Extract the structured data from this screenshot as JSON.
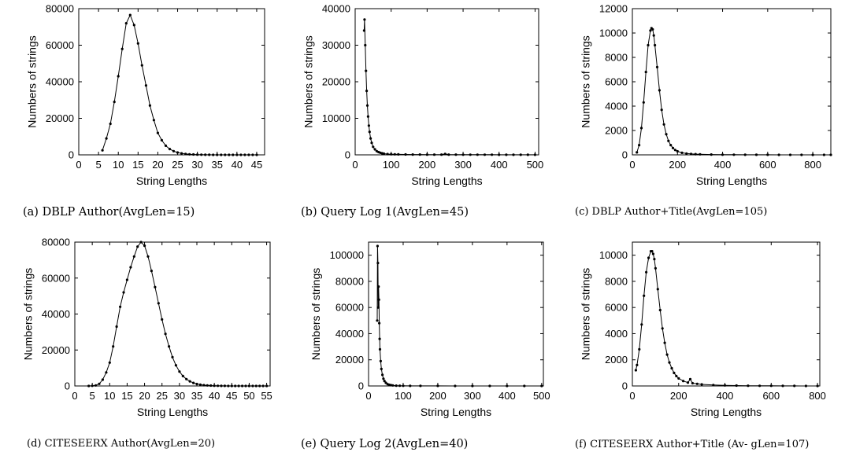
{
  "chart_data": [
    {
      "id": "a",
      "type": "line",
      "caption": "(a)  DBLP Author(AvgLen=15)",
      "xlabel": "String Lengths",
      "ylabel": "Numbers of strings",
      "xlim": [
        0,
        47
      ],
      "ylim": [
        0,
        80000
      ],
      "xticks": [
        0,
        5,
        10,
        15,
        20,
        25,
        30,
        35,
        40,
        45
      ],
      "yticks": [
        0,
        20000,
        40000,
        60000,
        80000
      ],
      "grid": false,
      "legend": "none",
      "series": [
        {
          "x": [
            6,
            7,
            8,
            9,
            10,
            11,
            12,
            13,
            14,
            15,
            16,
            17,
            18,
            19,
            20,
            21,
            22,
            23,
            24,
            25,
            26,
            27,
            28,
            29,
            30,
            31,
            32,
            33,
            34,
            35,
            36,
            37,
            38,
            39,
            40,
            41,
            42,
            43,
            44,
            45
          ],
          "y": [
            2500,
            9000,
            17000,
            29000,
            43000,
            58000,
            72000,
            76500,
            71000,
            61000,
            49000,
            38000,
            27000,
            19000,
            12000,
            8000,
            5000,
            3200,
            2000,
            1300,
            800,
            500,
            300,
            200,
            120,
            80,
            50,
            30,
            20,
            12,
            8,
            5,
            3,
            2,
            1,
            1,
            1,
            1,
            1,
            1
          ]
        }
      ]
    },
    {
      "id": "b",
      "type": "line",
      "caption": "(b)  Query Log 1(AvgLen=45)",
      "xlabel": "String Lengths",
      "ylabel": "Numbers of strings",
      "xlim": [
        0,
        510
      ],
      "ylim": [
        0,
        40000
      ],
      "xticks": [
        0,
        100,
        200,
        300,
        400,
        500
      ],
      "yticks": [
        0,
        10000,
        20000,
        30000,
        40000
      ],
      "grid": false,
      "legend": "none",
      "series": [
        {
          "x": [
            25,
            26,
            28,
            30,
            32,
            34,
            36,
            38,
            40,
            43,
            46,
            50,
            55,
            60,
            65,
            70,
            75,
            80,
            90,
            100,
            110,
            120,
            140,
            160,
            180,
            200,
            220,
            240,
            250,
            260,
            280,
            300,
            320,
            340,
            360,
            380,
            400,
            420,
            440,
            460,
            480,
            500
          ],
          "y": [
            34000,
            37000,
            30000,
            23000,
            17500,
            13500,
            10500,
            8000,
            6300,
            4500,
            3300,
            2200,
            1500,
            1000,
            750,
            560,
            420,
            320,
            220,
            170,
            140,
            120,
            100,
            90,
            80,
            75,
            70,
            65,
            260,
            60,
            55,
            50,
            45,
            40,
            38,
            35,
            32,
            30,
            28,
            25,
            22,
            20
          ]
        }
      ]
    },
    {
      "id": "c",
      "type": "line",
      "caption": "(c)  DBLP Author+Title(AvgLen=105)",
      "xlabel": "String Lengths",
      "ylabel": "Numbers of strings",
      "xlim": [
        0,
        880
      ],
      "ylim": [
        0,
        12000
      ],
      "xticks": [
        0,
        200,
        400,
        600,
        800
      ],
      "yticks": [
        0,
        2000,
        4000,
        6000,
        8000,
        10000,
        12000
      ],
      "grid": false,
      "legend": "none",
      "series": [
        {
          "x": [
            20,
            30,
            40,
            50,
            60,
            70,
            80,
            85,
            90,
            95,
            100,
            110,
            120,
            130,
            140,
            150,
            160,
            170,
            180,
            190,
            200,
            220,
            240,
            260,
            280,
            300,
            350,
            400,
            450,
            500,
            550,
            600,
            650,
            700,
            750,
            800,
            850,
            880
          ],
          "y": [
            200,
            800,
            2200,
            4300,
            6800,
            9000,
            10200,
            10400,
            10300,
            9800,
            9000,
            7200,
            5300,
            3700,
            2500,
            1700,
            1150,
            800,
            560,
            400,
            290,
            170,
            110,
            80,
            60,
            45,
            25,
            15,
            10,
            7,
            5,
            4,
            3,
            2,
            2,
            1,
            1,
            1
          ]
        }
      ]
    },
    {
      "id": "d",
      "type": "line",
      "caption": "(d)  CITESEERX Author(AvgLen=20)",
      "xlabel": "String Lengths",
      "ylabel": "Numbers of strings",
      "xlim": [
        0,
        56
      ],
      "ylim": [
        0,
        80000
      ],
      "xticks": [
        0,
        5,
        10,
        15,
        20,
        25,
        30,
        35,
        40,
        45,
        50,
        55
      ],
      "yticks": [
        0,
        20000,
        40000,
        60000,
        80000
      ],
      "grid": false,
      "legend": "none",
      "series": [
        {
          "x": [
            4,
            5,
            6,
            7,
            8,
            9,
            10,
            11,
            12,
            13,
            14,
            15,
            16,
            17,
            18,
            19,
            20,
            21,
            22,
            23,
            24,
            25,
            26,
            27,
            28,
            29,
            30,
            31,
            32,
            33,
            34,
            35,
            36,
            37,
            38,
            39,
            40,
            41,
            42,
            43,
            44,
            45,
            46,
            47,
            48,
            49,
            50,
            51,
            52,
            53,
            54,
            55
          ],
          "y": [
            0,
            100,
            300,
            1200,
            3500,
            7500,
            13000,
            22000,
            33000,
            44000,
            52000,
            59000,
            66000,
            72000,
            77500,
            80000,
            78000,
            72000,
            64000,
            55000,
            46000,
            37000,
            29000,
            22000,
            16000,
            11500,
            8000,
            5500,
            3800,
            2600,
            1700,
            1100,
            700,
            450,
            300,
            200,
            130,
            80,
            50,
            30,
            20,
            15,
            10,
            8,
            6,
            5,
            4,
            3,
            2,
            1,
            1,
            1
          ]
        }
      ]
    },
    {
      "id": "e",
      "type": "line",
      "caption": "(e)  Query Log 2(AvgLen=40)",
      "xlabel": "String Lengths",
      "ylabel": "Numbers of strings",
      "xlim": [
        0,
        505
      ],
      "ylim": [
        0,
        110000
      ],
      "xticks": [
        0,
        100,
        200,
        300,
        400,
        500
      ],
      "yticks": [
        0,
        20000,
        40000,
        60000,
        80000,
        100000
      ],
      "grid": false,
      "legend": "none",
      "series": [
        {
          "x": [
            25,
            26,
            27,
            28,
            29,
            30,
            31,
            32,
            33,
            35,
            37,
            40,
            43,
            46,
            50,
            55,
            60,
            65,
            70,
            80,
            90,
            100,
            120,
            150,
            200,
            250,
            300,
            350,
            400,
            450,
            500
          ],
          "y": [
            50000,
            107000,
            94000,
            60000,
            76000,
            66000,
            48000,
            36000,
            28000,
            19000,
            13000,
            8500,
            5500,
            3800,
            2400,
            1400,
            900,
            600,
            420,
            250,
            170,
            120,
            80,
            50,
            35,
            25,
            20,
            15,
            12,
            10,
            8
          ]
        }
      ]
    },
    {
      "id": "f",
      "type": "line",
      "caption": "(f)  CITESEERX Author+Title (Av- gLen=107)",
      "xlabel": "String Lengths",
      "ylabel": "Numbers of strings",
      "xlim": [
        0,
        810
      ],
      "ylim": [
        0,
        11000
      ],
      "xticks": [
        0,
        200,
        400,
        600,
        800
      ],
      "yticks": [
        0,
        2000,
        4000,
        6000,
        8000,
        10000
      ],
      "grid": false,
      "legend": "none",
      "series": [
        {
          "x": [
            15,
            20,
            30,
            40,
            50,
            60,
            70,
            80,
            85,
            90,
            95,
            100,
            110,
            120,
            130,
            140,
            150,
            160,
            170,
            180,
            190,
            200,
            220,
            240,
            250,
            260,
            280,
            300,
            350,
            400,
            450,
            500,
            550,
            600,
            650,
            700,
            750,
            800
          ],
          "y": [
            1200,
            1600,
            2800,
            4700,
            6900,
            8700,
            9800,
            10300,
            10300,
            10100,
            9700,
            9000,
            7400,
            5800,
            4400,
            3300,
            2400,
            1800,
            1350,
            1000,
            760,
            580,
            380,
            260,
            520,
            210,
            160,
            120,
            70,
            45,
            30,
            20,
            14,
            10,
            7,
            5,
            3,
            2
          ]
        }
      ]
    }
  ]
}
